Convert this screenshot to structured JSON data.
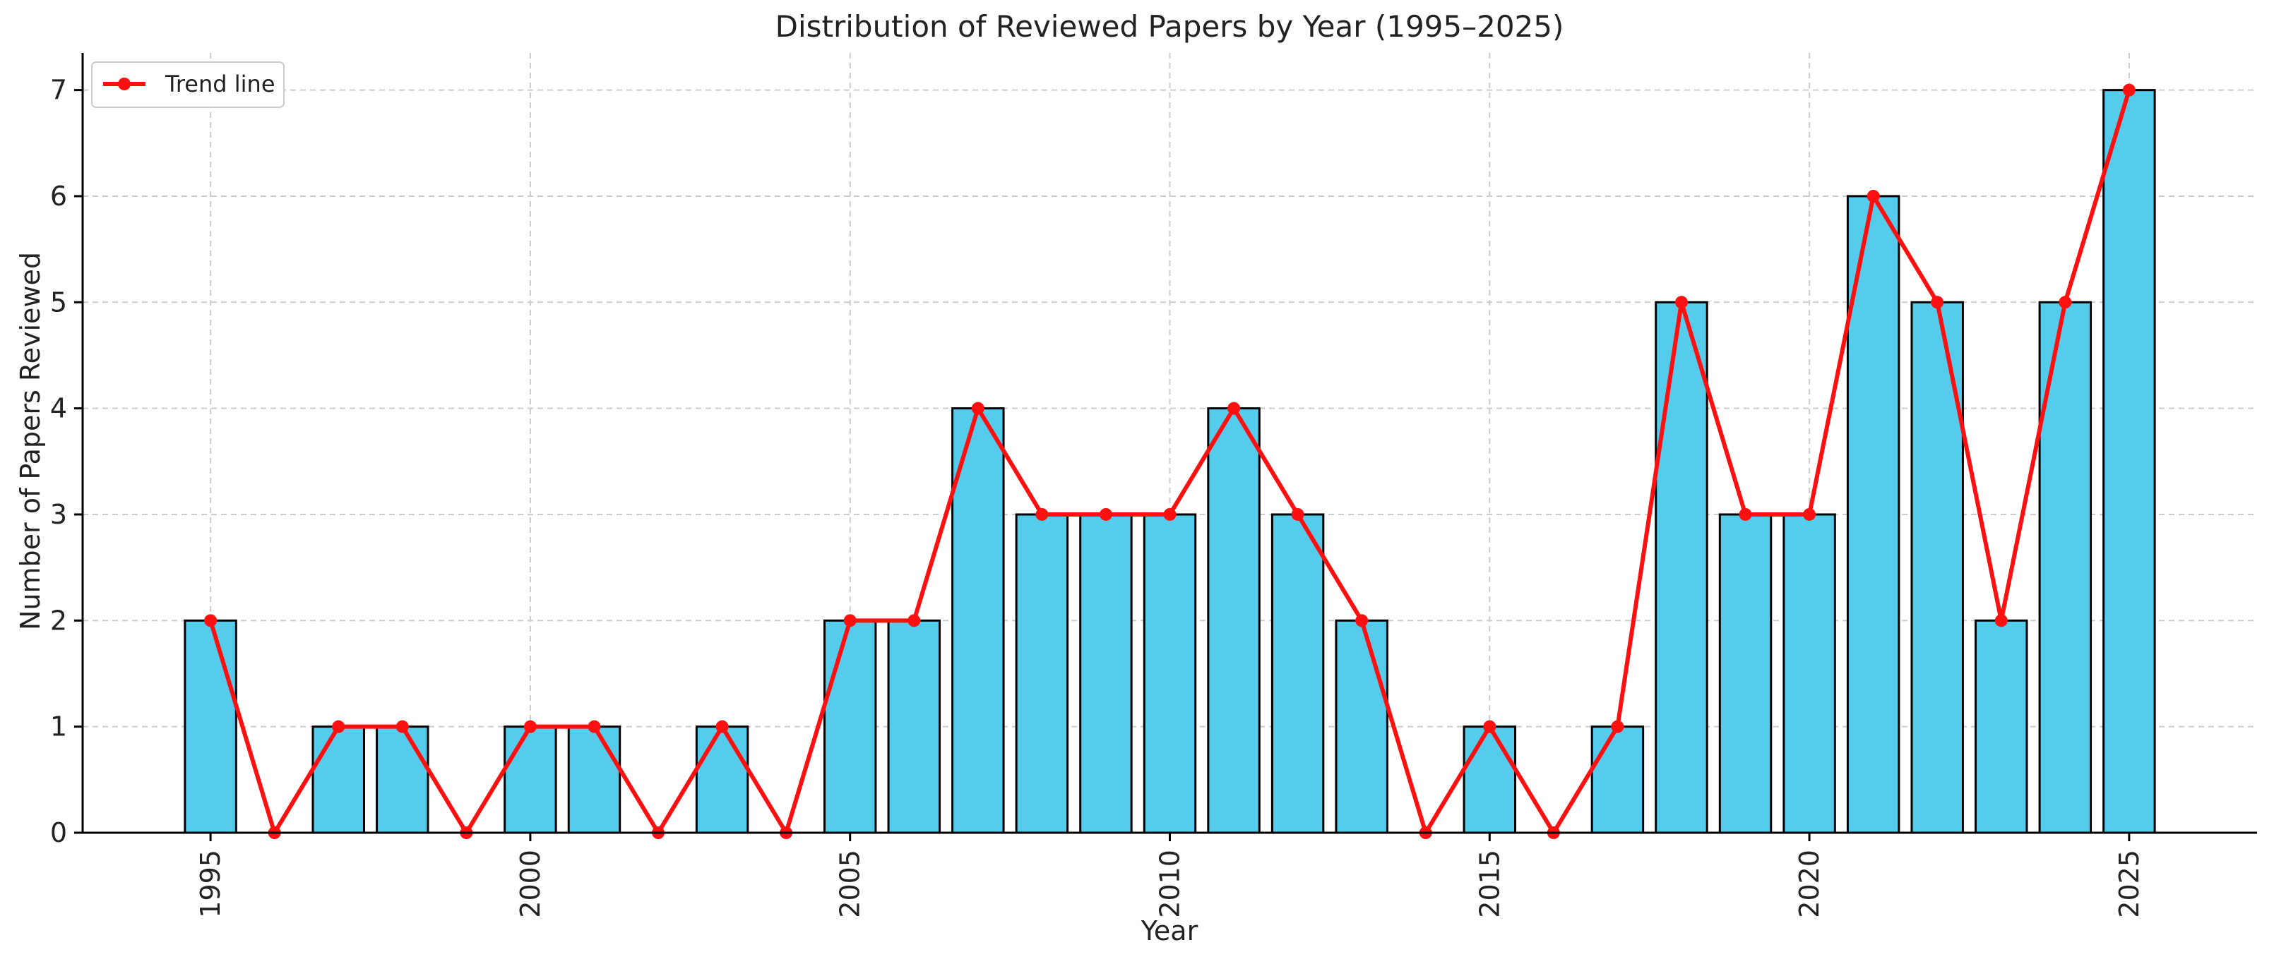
{
  "chart_data": {
    "type": "bar",
    "title": "Distribution of Reviewed Papers by Year (1995–2025)",
    "xlabel": "Year",
    "ylabel": "Number of Papers Reviewed",
    "x": [
      1995,
      1996,
      1997,
      1998,
      1999,
      2000,
      2001,
      2002,
      2003,
      2004,
      2005,
      2006,
      2007,
      2008,
      2009,
      2010,
      2011,
      2012,
      2013,
      2014,
      2015,
      2016,
      2017,
      2018,
      2019,
      2020,
      2021,
      2022,
      2023,
      2024,
      2025
    ],
    "values": [
      2,
      0,
      1,
      1,
      0,
      1,
      1,
      0,
      1,
      0,
      2,
      2,
      4,
      3,
      3,
      3,
      4,
      3,
      2,
      0,
      1,
      0,
      1,
      5,
      3,
      3,
      6,
      5,
      2,
      5,
      7
    ],
    "xticks": [
      "1995",
      "2000",
      "2005",
      "2010",
      "2015",
      "2020",
      "2025"
    ],
    "yticks": [
      "0",
      "1",
      "2",
      "3",
      "4",
      "5",
      "6",
      "7"
    ],
    "xlim": [
      1993,
      2027
    ],
    "ylim": [
      0,
      7.35
    ],
    "grid": true,
    "legend": {
      "placement": "top-left",
      "entries": [
        {
          "label": "Trend line"
        }
      ]
    },
    "series": [
      {
        "kind": "bar",
        "color": "#56CCEC"
      },
      {
        "name": "Trend line",
        "kind": "line",
        "color": "#FF1010"
      }
    ]
  }
}
